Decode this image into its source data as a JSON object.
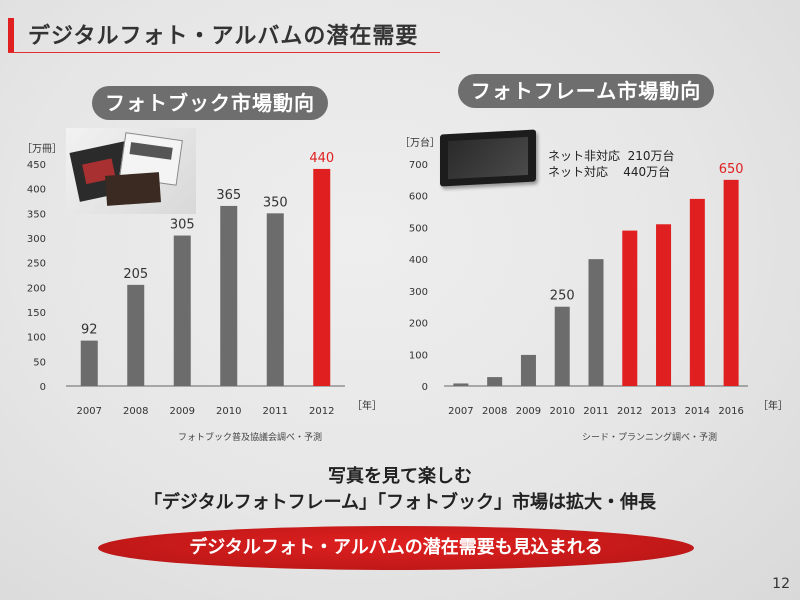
{
  "title": "デジタルフォト・アルバムの潜在需要",
  "colors": {
    "accent": "#e02020",
    "bar_gray": "#6c6c6c",
    "pill_gray": "#6e6e6e"
  },
  "left": {
    "pill": "フォトブック市場動向",
    "unit": "［万冊］",
    "source": "フォトブック普及協議会調べ・予測"
  },
  "right": {
    "pill": "フォトフレーム市場動向",
    "unit": "［万台］",
    "source": "シード・プランニング調べ・予測",
    "note_line1_label": "ネット非対応",
    "note_line1_value": "210万台",
    "note_line2_label": "ネット対応",
    "note_line2_value": "440万台"
  },
  "bottom": {
    "line1": "写真を見て楽しむ",
    "line2": "「デジタルフォトフレーム」「フォトブック」市場は拡大・伸長",
    "banner": "デジタルフォト・アルバムの潜在需要も見込まれる"
  },
  "page_number": "12",
  "chart_data": [
    {
      "type": "bar",
      "categories": [
        "2007",
        "2008",
        "2009",
        "2010",
        "2011",
        "2012"
      ],
      "values": [
        92,
        205,
        305,
        365,
        350,
        440
      ],
      "data_labels": [
        "92",
        "205",
        "305",
        "365",
        "350",
        "440"
      ],
      "highlight": [
        false,
        false,
        false,
        false,
        false,
        true
      ],
      "ylabel": "［万冊］",
      "xlabel": "［年］",
      "ylim": [
        0,
        450
      ],
      "yticks": [
        0,
        50,
        100,
        150,
        200,
        250,
        300,
        350,
        400,
        450
      ],
      "grid": false
    },
    {
      "type": "bar",
      "categories": [
        "2007",
        "2008",
        "2009",
        "2010",
        "2011",
        "2012",
        "2013",
        "2014",
        "2016"
      ],
      "values": [
        8,
        28,
        98,
        250,
        400,
        490,
        510,
        590,
        650
      ],
      "data_labels": [
        "",
        "",
        "",
        "250",
        "",
        "",
        "",
        "",
        "650"
      ],
      "highlight": [
        false,
        false,
        false,
        false,
        false,
        true,
        true,
        true,
        true
      ],
      "ylabel": "［万台］",
      "xlabel": "［年］",
      "ylim": [
        0,
        700
      ],
      "yticks": [
        0,
        100,
        200,
        300,
        400,
        500,
        600,
        700
      ],
      "grid": false
    }
  ]
}
